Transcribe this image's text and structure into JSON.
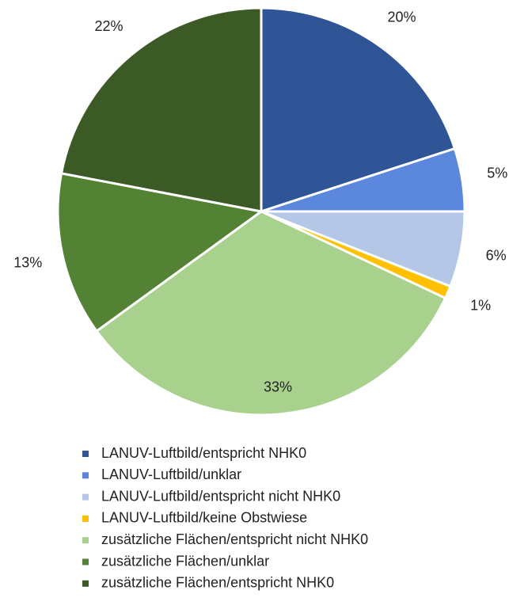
{
  "chart_data": {
    "type": "pie",
    "categories": [
      "LANUV-Luftbild/entspricht NHK0",
      "LANUV-Luftbild/unklar",
      "LANUV-Luftbild/entspricht nicht NHK0",
      "LANUV-Luftbild/keine Obstwiese",
      "zusätzliche Flächen/entspricht nicht NHK0",
      "zusätzliche Flächen/unklar",
      "zusätzliche Flächen/entspricht NHK0"
    ],
    "values": [
      20,
      5,
      6,
      1,
      33,
      13,
      22
    ],
    "value_labels": [
      "20%",
      "5%",
      "6%",
      "1%",
      "33%",
      "13%",
      "22%"
    ],
    "colors": [
      "#2f5597",
      "#5b87dd",
      "#b4c7e7",
      "#ffc000",
      "#a9d18e",
      "#548235",
      "#3b5a26"
    ],
    "legend": "bottom"
  }
}
